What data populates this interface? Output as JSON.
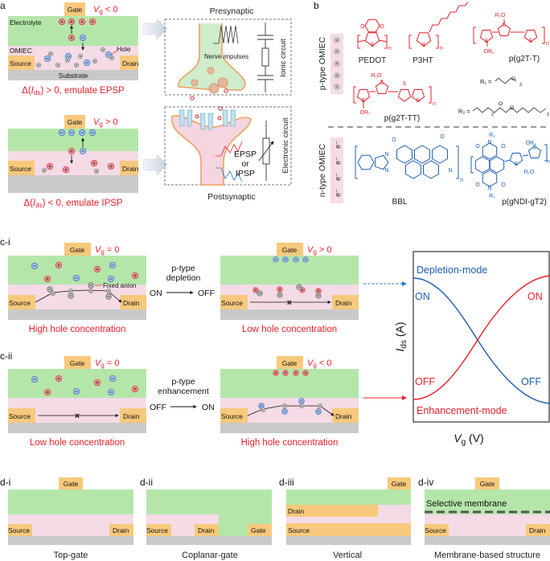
{
  "panel_labels": {
    "a": "a",
    "b": "b",
    "ci": "c-i",
    "cii": "c-ii"
  },
  "panel_a": {
    "top_device": {
      "gate": "Gate",
      "condition": {
        "symbol": "V",
        "subscript": "g",
        "relation": " < 0"
      },
      "electrolyte": "Electrolyte",
      "omiec": "OMIEC",
      "source": "Source",
      "drain": "Drain",
      "substrate": "Substrate",
      "hole_label": "Hole",
      "result": {
        "prefix": "Δ(",
        "symbol": "I",
        "subscript": "ds",
        "suffix": ") > 0, emulate EPSP"
      }
    },
    "bottom_device": {
      "gate": "Gate",
      "condition": {
        "symbol": "V",
        "subscript": "g",
        "relation": " > 0"
      },
      "source": "Source",
      "drain": "Drain",
      "result": {
        "prefix": "Δ(",
        "symbol": "I",
        "subscript": "ds",
        "suffix": ") < 0, emulate IPSP"
      }
    },
    "presynaptic": "Presynaptic",
    "nerve_impulses": "Nerve impulses",
    "ionic_circuit": "Ionic circuit",
    "postsynaptic": "Postsynaptic",
    "epsp": "EPSP",
    "or": "or",
    "ipsp": "IPSP",
    "electronic_circuit": "Electronic circuit"
  },
  "panel_b": {
    "p_type_label": "p-type OMIEC",
    "n_type_label": "n-type OMIEC",
    "electron": "e⁻",
    "polymers": {
      "pedot": "PEDOT",
      "p3ht": "P3HT",
      "pg2t_t": "p(g2T-T)",
      "pg2t_tt": "p(g2T-TT)",
      "bbl": "BBL",
      "pgndi_gt2": "p(gNDI-gT2)"
    },
    "r1_definition": "R₁ =",
    "r2_definition": "R₂ =",
    "atoms": {
      "S": "S",
      "O": "O",
      "N": "N",
      "n": "n",
      "OR1": "OR₁",
      "R1O": "R₁O",
      "R2": "R₂",
      "sub3": "3",
      "sub2": "2"
    }
  },
  "panel_c": {
    "ci": {
      "left": {
        "gate": "Gate",
        "condition": {
          "symbol": "V",
          "subscript": "g",
          "relation": " = 0"
        },
        "source": "Source",
        "drain": "Drain",
        "fixed_anion": "Fixed anion",
        "caption": "High hole concentration"
      },
      "transition": {
        "line1": "p-type",
        "line2": "depletion",
        "from": "ON",
        "to": "OFF"
      },
      "right": {
        "gate": "Gate",
        "condition": {
          "symbol": "V",
          "subscript": "g",
          "relation": " > 0"
        },
        "source": "Source",
        "drain": "Drain",
        "caption": "Low hole concentration"
      }
    },
    "cii": {
      "left": {
        "gate": "Gate",
        "condition": {
          "symbol": "V",
          "subscript": "g",
          "relation": " = 0"
        },
        "source": "Source",
        "drain": "Drain",
        "caption": "Low hole concentration"
      },
      "transition": {
        "line1": "p-type",
        "line2": "enhancement",
        "from": "OFF",
        "to": "ON"
      },
      "right": {
        "gate": "Gate",
        "condition": {
          "symbol": "V",
          "subscript": "g",
          "relation": " < 0"
        },
        "source": "Source",
        "drain": "Drain",
        "caption": "High hole concentration"
      }
    },
    "graph": {
      "ylabel": {
        "symbol": "I",
        "subscript": "ds",
        "unit": " (A)"
      },
      "xlabel": {
        "symbol": "V",
        "subscript": "g",
        "unit": " (V)"
      },
      "depletion_mode": "Depletion-mode",
      "enhancement_mode": "Enhancement-mode",
      "depletion_on": "ON",
      "depletion_off": "OFF",
      "enhancement_on": "ON",
      "enhancement_off": "OFF"
    }
  },
  "panel_d": [
    {
      "label": "d-i",
      "caption": "Top-gate",
      "gate": "Gate",
      "source": "Source",
      "drain": "Drain"
    },
    {
      "label": "d-ii",
      "caption": "Coplanar-gate",
      "gate": "Gate",
      "source": "Source",
      "drain": "Drain"
    },
    {
      "label": "d-iii",
      "caption": "Vertical",
      "gate": "Gate",
      "source": "Source",
      "drain": "Drain"
    },
    {
      "label": "d-iv",
      "caption": "Membrane-based structure",
      "gate": "Gate",
      "source": "Source",
      "drain": "Drain",
      "membrane": "Selective membrane"
    }
  ],
  "colors": {
    "electrolyte": "#b4e6a9",
    "omiec": "#f5dbe6",
    "substrate": "#c9c9c9",
    "electrode": "#f8c97c",
    "cation_red": "#e8202a",
    "anion_blue": "#1f5fb5",
    "p_type_structure": "#e8202a",
    "n_type_structure": "#1f5fb5"
  }
}
